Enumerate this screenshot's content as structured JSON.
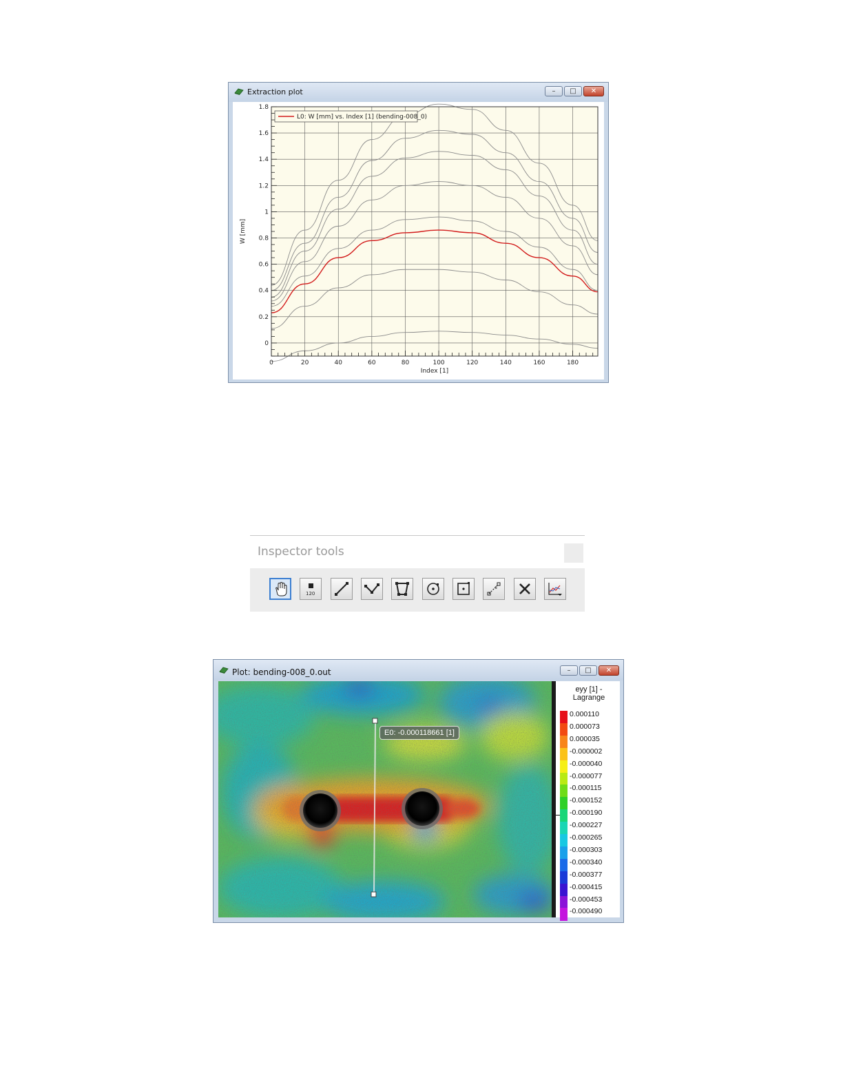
{
  "extraction_window": {
    "title": "Extraction plot",
    "legend_entry": "L0: W [mm] vs. Index [1] (bending-008_0)",
    "controls": {
      "minimize": "–",
      "maximize": "□",
      "close": "✕"
    }
  },
  "chart_data": {
    "type": "line",
    "xlabel": "Index [1]",
    "ylabel": "W [mm]",
    "xlim": [
      0,
      195
    ],
    "ylim": [
      -0.1,
      1.8
    ],
    "x_ticks": [
      0,
      20,
      40,
      60,
      80,
      100,
      120,
      140,
      160,
      180
    ],
    "y_ticks": [
      0,
      0.2,
      0.4,
      0.6,
      0.8,
      1,
      1.2,
      1.4,
      1.6,
      1.8
    ],
    "x_tick_labels": [
      "0",
      "20",
      "40",
      "60",
      "80",
      "100",
      "120",
      "140",
      "160",
      "180"
    ],
    "y_tick_labels": [
      "0",
      "0.2",
      "0.4",
      "0.6",
      "0.8",
      "1",
      "1.2",
      "1.4",
      "1.6",
      "1.8"
    ],
    "grid": true,
    "legend_position": "top-left",
    "series": [
      {
        "x": [
          0,
          20,
          40,
          60,
          80,
          100,
          120,
          140,
          160,
          180,
          195
        ],
        "values": [
          0.44,
          0.86,
          1.24,
          1.55,
          1.74,
          1.82,
          1.78,
          1.62,
          1.37,
          1.05,
          0.78
        ],
        "color": "#8a8a8a"
      },
      {
        "x": [
          0,
          20,
          40,
          60,
          80,
          100,
          120,
          140,
          160,
          180,
          195
        ],
        "values": [
          0.4,
          0.76,
          1.11,
          1.39,
          1.56,
          1.62,
          1.59,
          1.45,
          1.23,
          0.95,
          0.69
        ],
        "color": "#8a8a8a"
      },
      {
        "x": [
          0,
          20,
          40,
          60,
          80,
          100,
          120,
          140,
          160,
          180,
          195
        ],
        "values": [
          0.35,
          0.7,
          1.02,
          1.27,
          1.41,
          1.46,
          1.43,
          1.32,
          1.12,
          0.86,
          0.6
        ],
        "color": "#8a8a8a"
      },
      {
        "x": [
          0,
          20,
          40,
          60,
          80,
          100,
          120,
          140,
          160,
          180,
          195
        ],
        "values": [
          0.32,
          0.62,
          0.89,
          1.09,
          1.2,
          1.23,
          1.2,
          1.11,
          0.95,
          0.74,
          0.52
        ],
        "color": "#8a8a8a"
      },
      {
        "x": [
          0,
          20,
          40,
          60,
          80,
          100,
          120,
          140,
          160,
          180,
          195
        ],
        "values": [
          0.28,
          0.51,
          0.72,
          0.86,
          0.94,
          0.96,
          0.93,
          0.85,
          0.73,
          0.56,
          0.4
        ],
        "color": "#8a8a8a"
      },
      {
        "name": "L0: W [mm] vs. Index [1] (bending-008_0)",
        "x": [
          0,
          20,
          40,
          60,
          80,
          100,
          120,
          140,
          160,
          180,
          195
        ],
        "values": [
          0.23,
          0.45,
          0.65,
          0.78,
          0.84,
          0.86,
          0.84,
          0.76,
          0.65,
          0.51,
          0.39
        ],
        "color": "#d21a1a"
      },
      {
        "x": [
          0,
          20,
          40,
          60,
          80,
          100,
          120,
          140,
          160,
          180,
          195
        ],
        "values": [
          0.11,
          0.28,
          0.42,
          0.52,
          0.56,
          0.56,
          0.54,
          0.48,
          0.39,
          0.29,
          0.22
        ],
        "color": "#8a8a8a"
      },
      {
        "x": [
          0,
          20,
          40,
          60,
          80,
          100,
          120,
          140,
          160,
          180,
          195
        ],
        "values": [
          -0.14,
          -0.06,
          0.0,
          0.05,
          0.08,
          0.09,
          0.08,
          0.06,
          0.03,
          -0.01,
          -0.04
        ],
        "color": "#8a8a8a"
      }
    ]
  },
  "inspector": {
    "title": "Inspector tools",
    "tools": [
      {
        "icon": "hand-icon",
        "active": true
      },
      {
        "icon": "point-inspector-icon",
        "active": false
      },
      {
        "icon": "line-icon",
        "active": false
      },
      {
        "icon": "polyline-icon",
        "active": false
      },
      {
        "icon": "polygon-icon",
        "active": false
      },
      {
        "icon": "circle-icon",
        "active": false
      },
      {
        "icon": "rectangle-icon",
        "active": false
      },
      {
        "icon": "distance-icon",
        "active": false
      },
      {
        "icon": "delete-icon",
        "active": false
      },
      {
        "icon": "plot-extract-icon",
        "active": false
      }
    ]
  },
  "plot_window": {
    "title": "Plot: bending-008_0.out",
    "tooltip": "E0: -0.000118661 [1]",
    "legend_title": "eyy [1] - Lagrange",
    "legend_values": [
      "0.000110",
      "0.000073",
      "0.000035",
      "-0.000002",
      "-0.000040",
      "-0.000077",
      "-0.000115",
      "-0.000152",
      "-0.000190",
      "-0.000227",
      "-0.000265",
      "-0.000303",
      "-0.000340",
      "-0.000377",
      "-0.000415",
      "-0.000453",
      "-0.000490"
    ],
    "legend_colors": [
      "#e6101a",
      "#f24a12",
      "#f8851a",
      "#fbc21a",
      "#f6ef16",
      "#b9ea14",
      "#6fdc18",
      "#2fd028",
      "#18d678",
      "#1ad6b4",
      "#18c8e2",
      "#1aa0ea",
      "#1a6ae8",
      "#1a3ad8",
      "#3a14d2",
      "#8a14d8",
      "#c414de"
    ]
  }
}
